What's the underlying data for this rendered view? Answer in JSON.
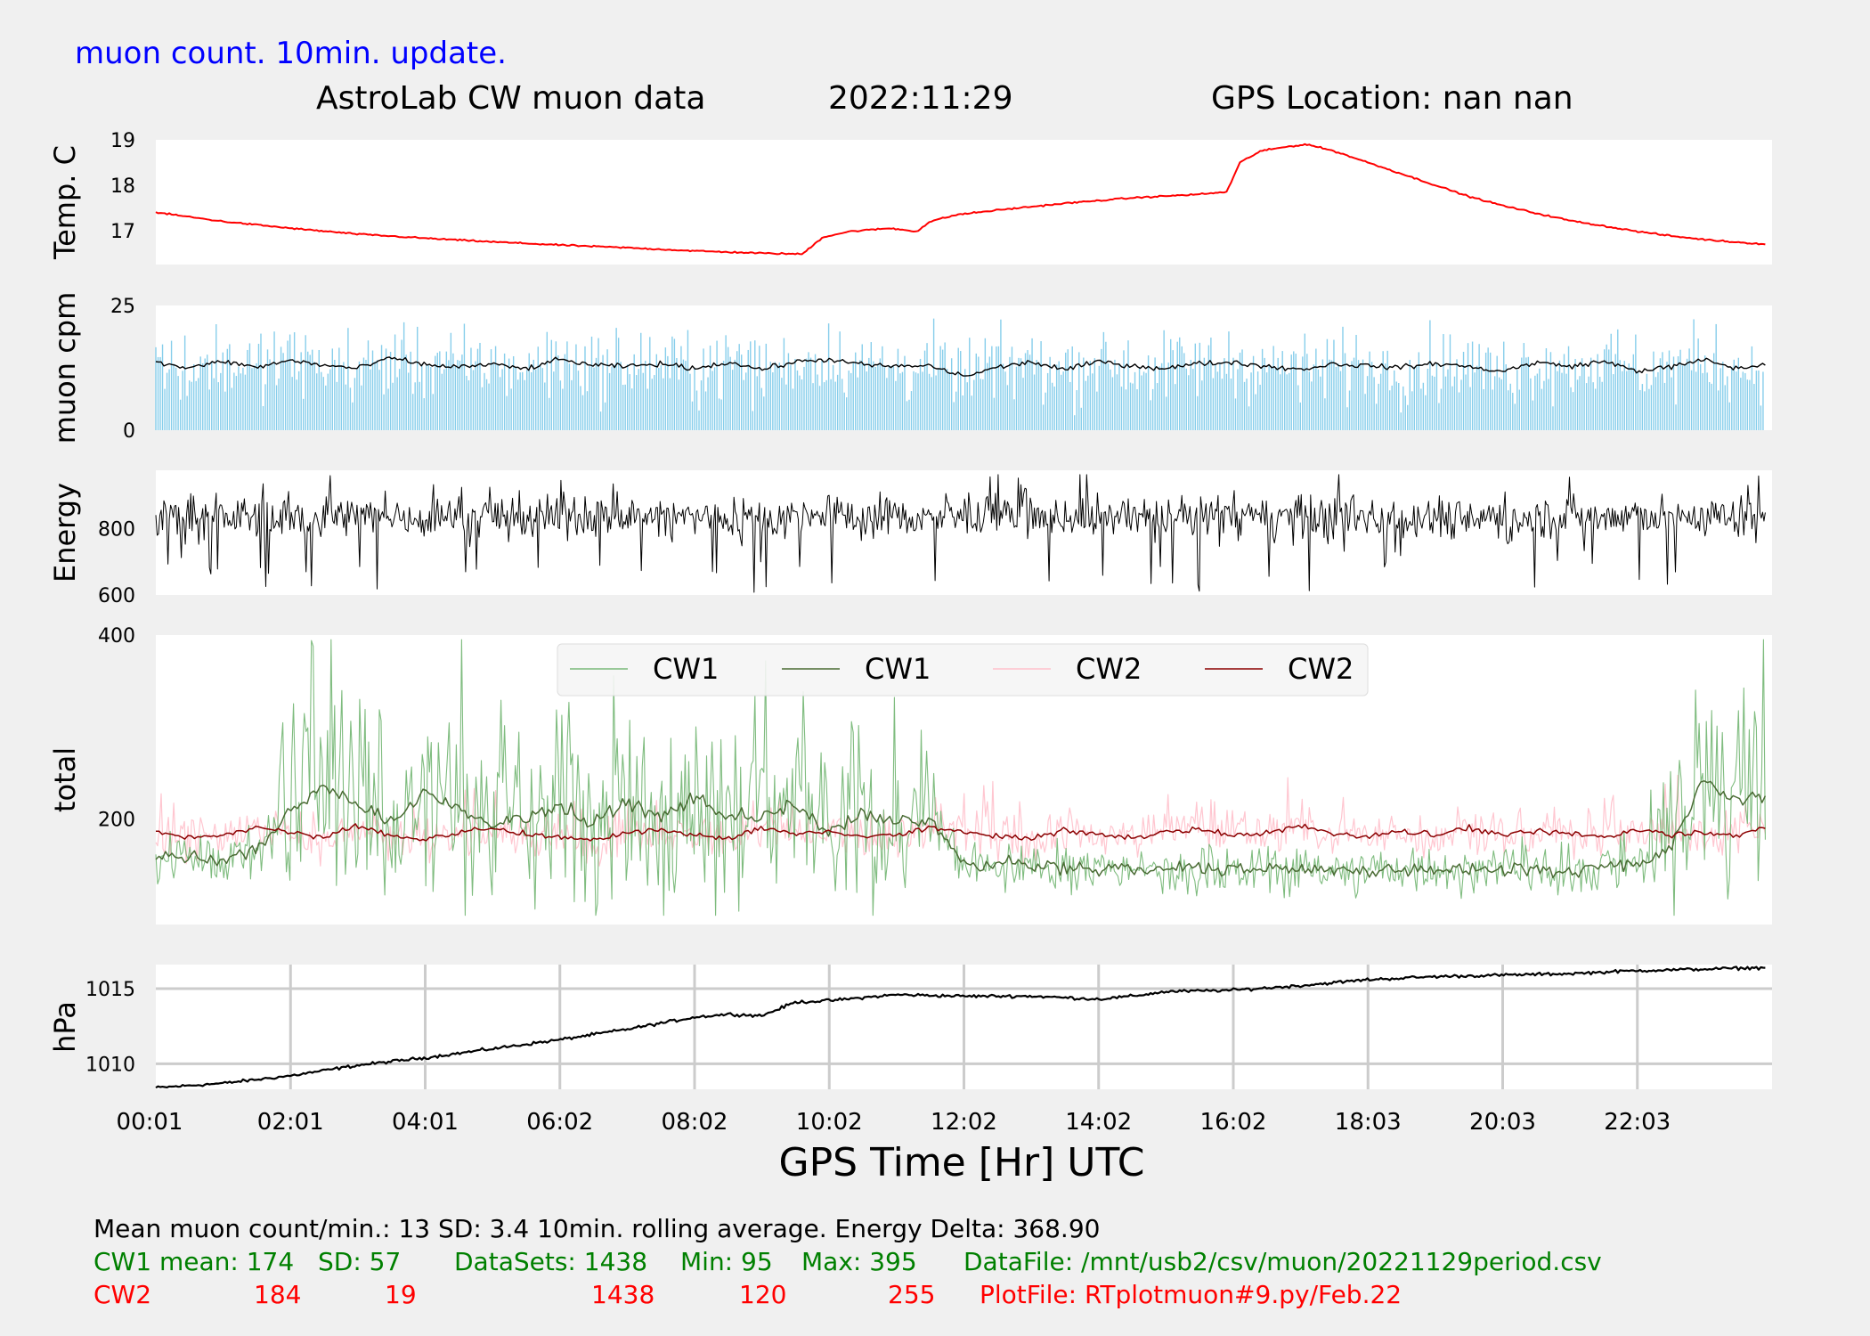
{
  "header": {
    "note": "muon count.  10min. update.",
    "note_color": "#0000ff",
    "title_left": "AstroLab CW muon data",
    "title_date": "2022:11:29",
    "title_right": "GPS Location: nan   nan"
  },
  "x_axis": {
    "label": "GPS Time  [Hr] UTC",
    "ticks": [
      "00:01",
      "02:01",
      "04:01",
      "06:02",
      "08:02",
      "10:02",
      "12:02",
      "14:02",
      "16:02",
      "18:03",
      "20:03",
      "22:03"
    ]
  },
  "chart_data": [
    {
      "id": "temp",
      "type": "line",
      "ylabel": "Temp. C",
      "ylim": [
        16.25,
        19
      ],
      "yticks": [
        "17",
        "18",
        "19"
      ],
      "grid": false,
      "series": [
        {
          "color": "#ff0000",
          "x": [
            0,
            1,
            2,
            3,
            4,
            5,
            6,
            7,
            8,
            9,
            9.6,
            9.9,
            10.3,
            10.9,
            11.3,
            11.5,
            11.9,
            12.5,
            13.5,
            14.5,
            15.5,
            15.9,
            16.1,
            16.4,
            16.8,
            17.1,
            17.5,
            18,
            18.5,
            19,
            19.5,
            20,
            20.5,
            21,
            21.5,
            22,
            22.5,
            23,
            23.5,
            23.9
          ],
          "y": [
            17.4,
            17.2,
            17.05,
            16.92,
            16.83,
            16.75,
            16.68,
            16.62,
            16.55,
            16.5,
            16.48,
            16.85,
            16.98,
            17.05,
            16.98,
            17.2,
            17.35,
            17.45,
            17.6,
            17.72,
            17.8,
            17.85,
            18.5,
            18.75,
            18.85,
            18.9,
            18.75,
            18.5,
            18.25,
            18.0,
            17.75,
            17.55,
            17.38,
            17.22,
            17.1,
            16.98,
            16.88,
            16.8,
            16.74,
            16.7
          ]
        }
      ]
    },
    {
      "id": "muon-cpm",
      "type": "bar",
      "ylabel": "muon cpm",
      "ylim": [
        0,
        25
      ],
      "yticks": [
        "0",
        "25"
      ],
      "grid": false,
      "series": [
        {
          "name": "per-minute count",
          "color": "#87ceeb",
          "summary": "1438 one-minute counts, mean 13, SD 3.4, peaks up to 25"
        },
        {
          "name": "10min. rolling average",
          "color": "#000000",
          "x": [
            0,
            0.5,
            1,
            1.5,
            2,
            2.5,
            3,
            3.5,
            4,
            4.5,
            5,
            5.5,
            6,
            6.5,
            7,
            7.5,
            8,
            8.5,
            9,
            9.5,
            10,
            10.5,
            11,
            11.5,
            12,
            12.5,
            13,
            13.5,
            14,
            14.5,
            15,
            15.5,
            16,
            16.5,
            17,
            17.5,
            18,
            18.5,
            19,
            19.5,
            20,
            20.5,
            21,
            21.5,
            22,
            22.5,
            23,
            23.5,
            23.9
          ],
          "y": [
            13.5,
            12.5,
            13.8,
            12.6,
            14,
            13,
            12.4,
            14.5,
            13.1,
            12.7,
            13.2,
            12.3,
            14.2,
            13,
            12.8,
            13.3,
            12.4,
            13.6,
            12.2,
            13.7,
            14.2,
            13.1,
            12.8,
            12.9,
            10.8,
            12.6,
            13.7,
            12.1,
            13.8,
            12.9,
            12.4,
            13.4,
            13.6,
            12.8,
            12.2,
            13.3,
            12.9,
            12.6,
            13.4,
            12.7,
            11.8,
            13.6,
            12.8,
            13.8,
            11.9,
            12.7,
            14.1,
            12.3,
            13.2
          ]
        }
      ]
    },
    {
      "id": "energy",
      "type": "line",
      "ylabel": "Energy",
      "ylim": [
        600,
        975
      ],
      "yticks": [
        "600",
        "800"
      ],
      "grid": false,
      "series": [
        {
          "color": "#000000",
          "summary": "noisy per-minute energy around 830, range about 610-950"
        }
      ]
    },
    {
      "id": "total",
      "type": "line",
      "ylabel": "total",
      "ylim": [
        85,
        400
      ],
      "yticks": [
        "200",
        "400"
      ],
      "grid": false,
      "legend": {
        "placement": "top-center"
      },
      "series": [
        {
          "name": "CW1",
          "color": "#78b878",
          "summary": "raw per-minute CW1 counts, mean 174, SD 57, min 95, max 395"
        },
        {
          "name": "CW1",
          "color": "#4a6b34",
          "x": [
            0,
            1,
            1.5,
            2,
            2.5,
            3,
            3.5,
            4,
            4.5,
            5,
            5.5,
            6,
            6.5,
            7,
            7.5,
            8,
            8.5,
            9,
            9.5,
            10,
            10.5,
            11,
            11.5,
            12,
            13,
            14,
            15,
            16,
            17,
            18,
            19,
            20,
            20.5,
            21,
            21.5,
            22,
            22.5,
            23,
            23.5,
            23.9
          ],
          "y": [
            160,
            155,
            165,
            210,
            235,
            215,
            195,
            230,
            210,
            190,
            205,
            215,
            195,
            220,
            200,
            225,
            205,
            200,
            215,
            185,
            205,
            195,
            200,
            150,
            150,
            145,
            145,
            145,
            145,
            145,
            145,
            145,
            145,
            140,
            150,
            150,
            170,
            245,
            220,
            220
          ]
        },
        {
          "name": "CW2",
          "color": "#ffc0cb",
          "summary": "raw per-minute CW2 counts, mean 184, SD 19, min 120, max 255"
        },
        {
          "name": "CW2",
          "color": "#8b0000",
          "x": [
            0,
            0.5,
            1,
            1.5,
            2,
            2.5,
            3,
            3.5,
            4,
            4.5,
            5,
            5.5,
            6,
            6.5,
            7,
            7.5,
            8,
            8.5,
            9,
            9.5,
            10,
            10.5,
            11,
            11.5,
            12,
            12.5,
            13,
            13.5,
            14,
            14.5,
            15,
            15.5,
            16,
            16.5,
            17,
            17.5,
            18,
            18.5,
            19,
            19.5,
            20,
            20.5,
            21,
            21.5,
            22,
            22.5,
            23,
            23.5,
            23.9
          ],
          "y": [
            185,
            180,
            183,
            190,
            186,
            180,
            192,
            182,
            178,
            185,
            190,
            183,
            180,
            176,
            185,
            188,
            182,
            178,
            190,
            184,
            186,
            180,
            183,
            191,
            185,
            181,
            179,
            187,
            183,
            180,
            186,
            189,
            182,
            185,
            192,
            184,
            180,
            187,
            183,
            190,
            182,
            186,
            184,
            181,
            188,
            183,
            186,
            181,
            192
          ]
        }
      ]
    },
    {
      "id": "pressure",
      "type": "line",
      "ylabel": "hPa",
      "ylim": [
        1008.3,
        1016.6
      ],
      "yticks": [
        "1010",
        "1015"
      ],
      "grid": true,
      "series": [
        {
          "color": "#000000",
          "x": [
            0,
            1,
            2,
            3,
            4,
            5,
            6,
            7,
            8,
            8.5,
            9,
            9.5,
            10,
            11,
            12,
            13,
            14,
            14.5,
            15,
            16,
            17,
            18,
            19,
            20,
            21,
            22,
            23,
            23.9
          ],
          "y": [
            1008.4,
            1008.7,
            1009.2,
            1009.9,
            1010.4,
            1011.0,
            1011.6,
            1012.3,
            1013.1,
            1013.3,
            1013.2,
            1014.1,
            1014.2,
            1014.6,
            1014.5,
            1014.5,
            1014.3,
            1014.5,
            1014.8,
            1014.9,
            1015.2,
            1015.6,
            1015.8,
            1015.9,
            1016.0,
            1016.2,
            1016.3,
            1016.4
          ]
        }
      ]
    }
  ],
  "stats": {
    "line1": "Mean muon count/min.: 13  SD: 3.4   10min. rolling average.    Energy Delta:  368.90",
    "line1_color": "#000000",
    "cw1_color": "#008000",
    "cw2_color": "#ff0000",
    "cw1": [
      "CW1 mean: 174",
      "SD: 57",
      "DataSets: 1438",
      "Min: 95",
      "Max: 395",
      "DataFile: /mnt/usb2/csv/muon/20221129period.csv"
    ],
    "cw2": [
      "CW2",
      "184",
      "19",
      "1438",
      "120",
      "255",
      "PlotFile: RTplotmuon#9.py/Feb.22"
    ]
  }
}
